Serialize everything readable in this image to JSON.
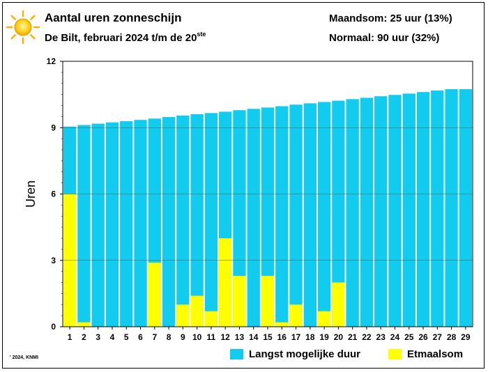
{
  "header": {
    "title": "Aantal uren zonneschijn",
    "subtitle": "De Bilt, februari 2024 t/m de 20",
    "subtitle_suffix": "ste",
    "maandsom": "Maandsom: 25 uur (13%)",
    "normaal": "Normaal: 90 uur (32%)"
  },
  "credit": "' 2024, KNMI",
  "legend": [
    {
      "label": "Langst mogelijke duur",
      "color": "#11ccee"
    },
    {
      "label": "Etmaalsom",
      "color": "#ffff00"
    }
  ],
  "chart_data": {
    "type": "bar",
    "title": "Aantal uren zonneschijn",
    "ylabel": "Uren",
    "xlabel": "",
    "ylim": [
      0,
      12
    ],
    "yticks": [
      0,
      3,
      6,
      9,
      12
    ],
    "categories": [
      "1",
      "2",
      "3",
      "4",
      "5",
      "6",
      "7",
      "8",
      "9",
      "10",
      "11",
      "12",
      "13",
      "14",
      "15",
      "16",
      "17",
      "18",
      "19",
      "20",
      "21",
      "22",
      "23",
      "24",
      "25",
      "26",
      "27",
      "28",
      "29"
    ],
    "grid": true,
    "legend_position": "bottom",
    "series": [
      {
        "name": "Langst mogelijke duur",
        "color": "#11ccee",
        "values": [
          9.05,
          9.12,
          9.18,
          9.24,
          9.29,
          9.35,
          9.41,
          9.48,
          9.55,
          9.61,
          9.66,
          9.72,
          9.79,
          9.85,
          9.91,
          9.97,
          10.04,
          10.1,
          10.16,
          10.22,
          10.29,
          10.35,
          10.42,
          10.48,
          10.54,
          10.61,
          10.68,
          10.74,
          10.74
        ]
      },
      {
        "name": "Etmaalsom",
        "color": "#ffff00",
        "values": [
          6.0,
          0.2,
          0,
          0,
          0,
          0,
          2.9,
          0,
          1.0,
          1.4,
          0.7,
          4.0,
          2.3,
          0,
          2.3,
          0.2,
          1.0,
          0,
          0.7,
          2.0,
          null,
          null,
          null,
          null,
          null,
          null,
          null,
          null,
          null
        ]
      }
    ]
  }
}
